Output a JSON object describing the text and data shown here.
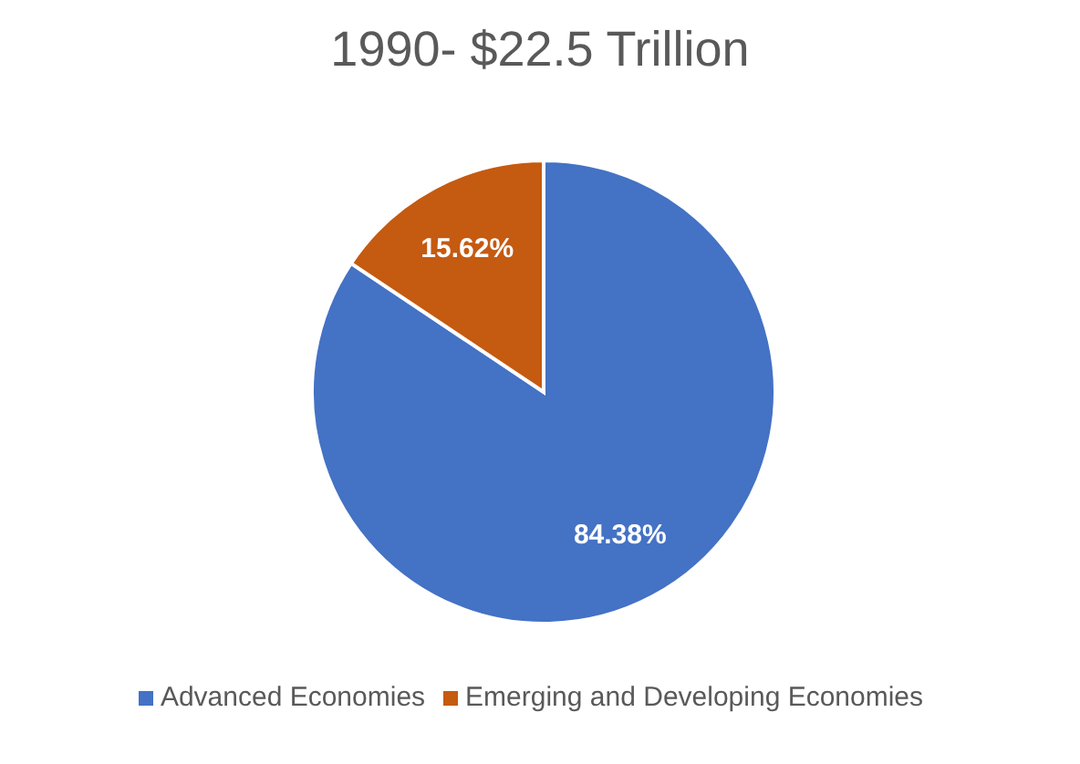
{
  "chart_data": {
    "type": "pie",
    "title": "1990- $22.5 Trillion",
    "categories": [
      "Advanced Economies",
      "Emerging and Developing Economies"
    ],
    "values": [
      84.38,
      15.62
    ],
    "colors": [
      "#4472c4",
      "#c55a11"
    ],
    "value_labels": [
      "84.38%",
      "15.62%"
    ],
    "legend": "bottom"
  }
}
